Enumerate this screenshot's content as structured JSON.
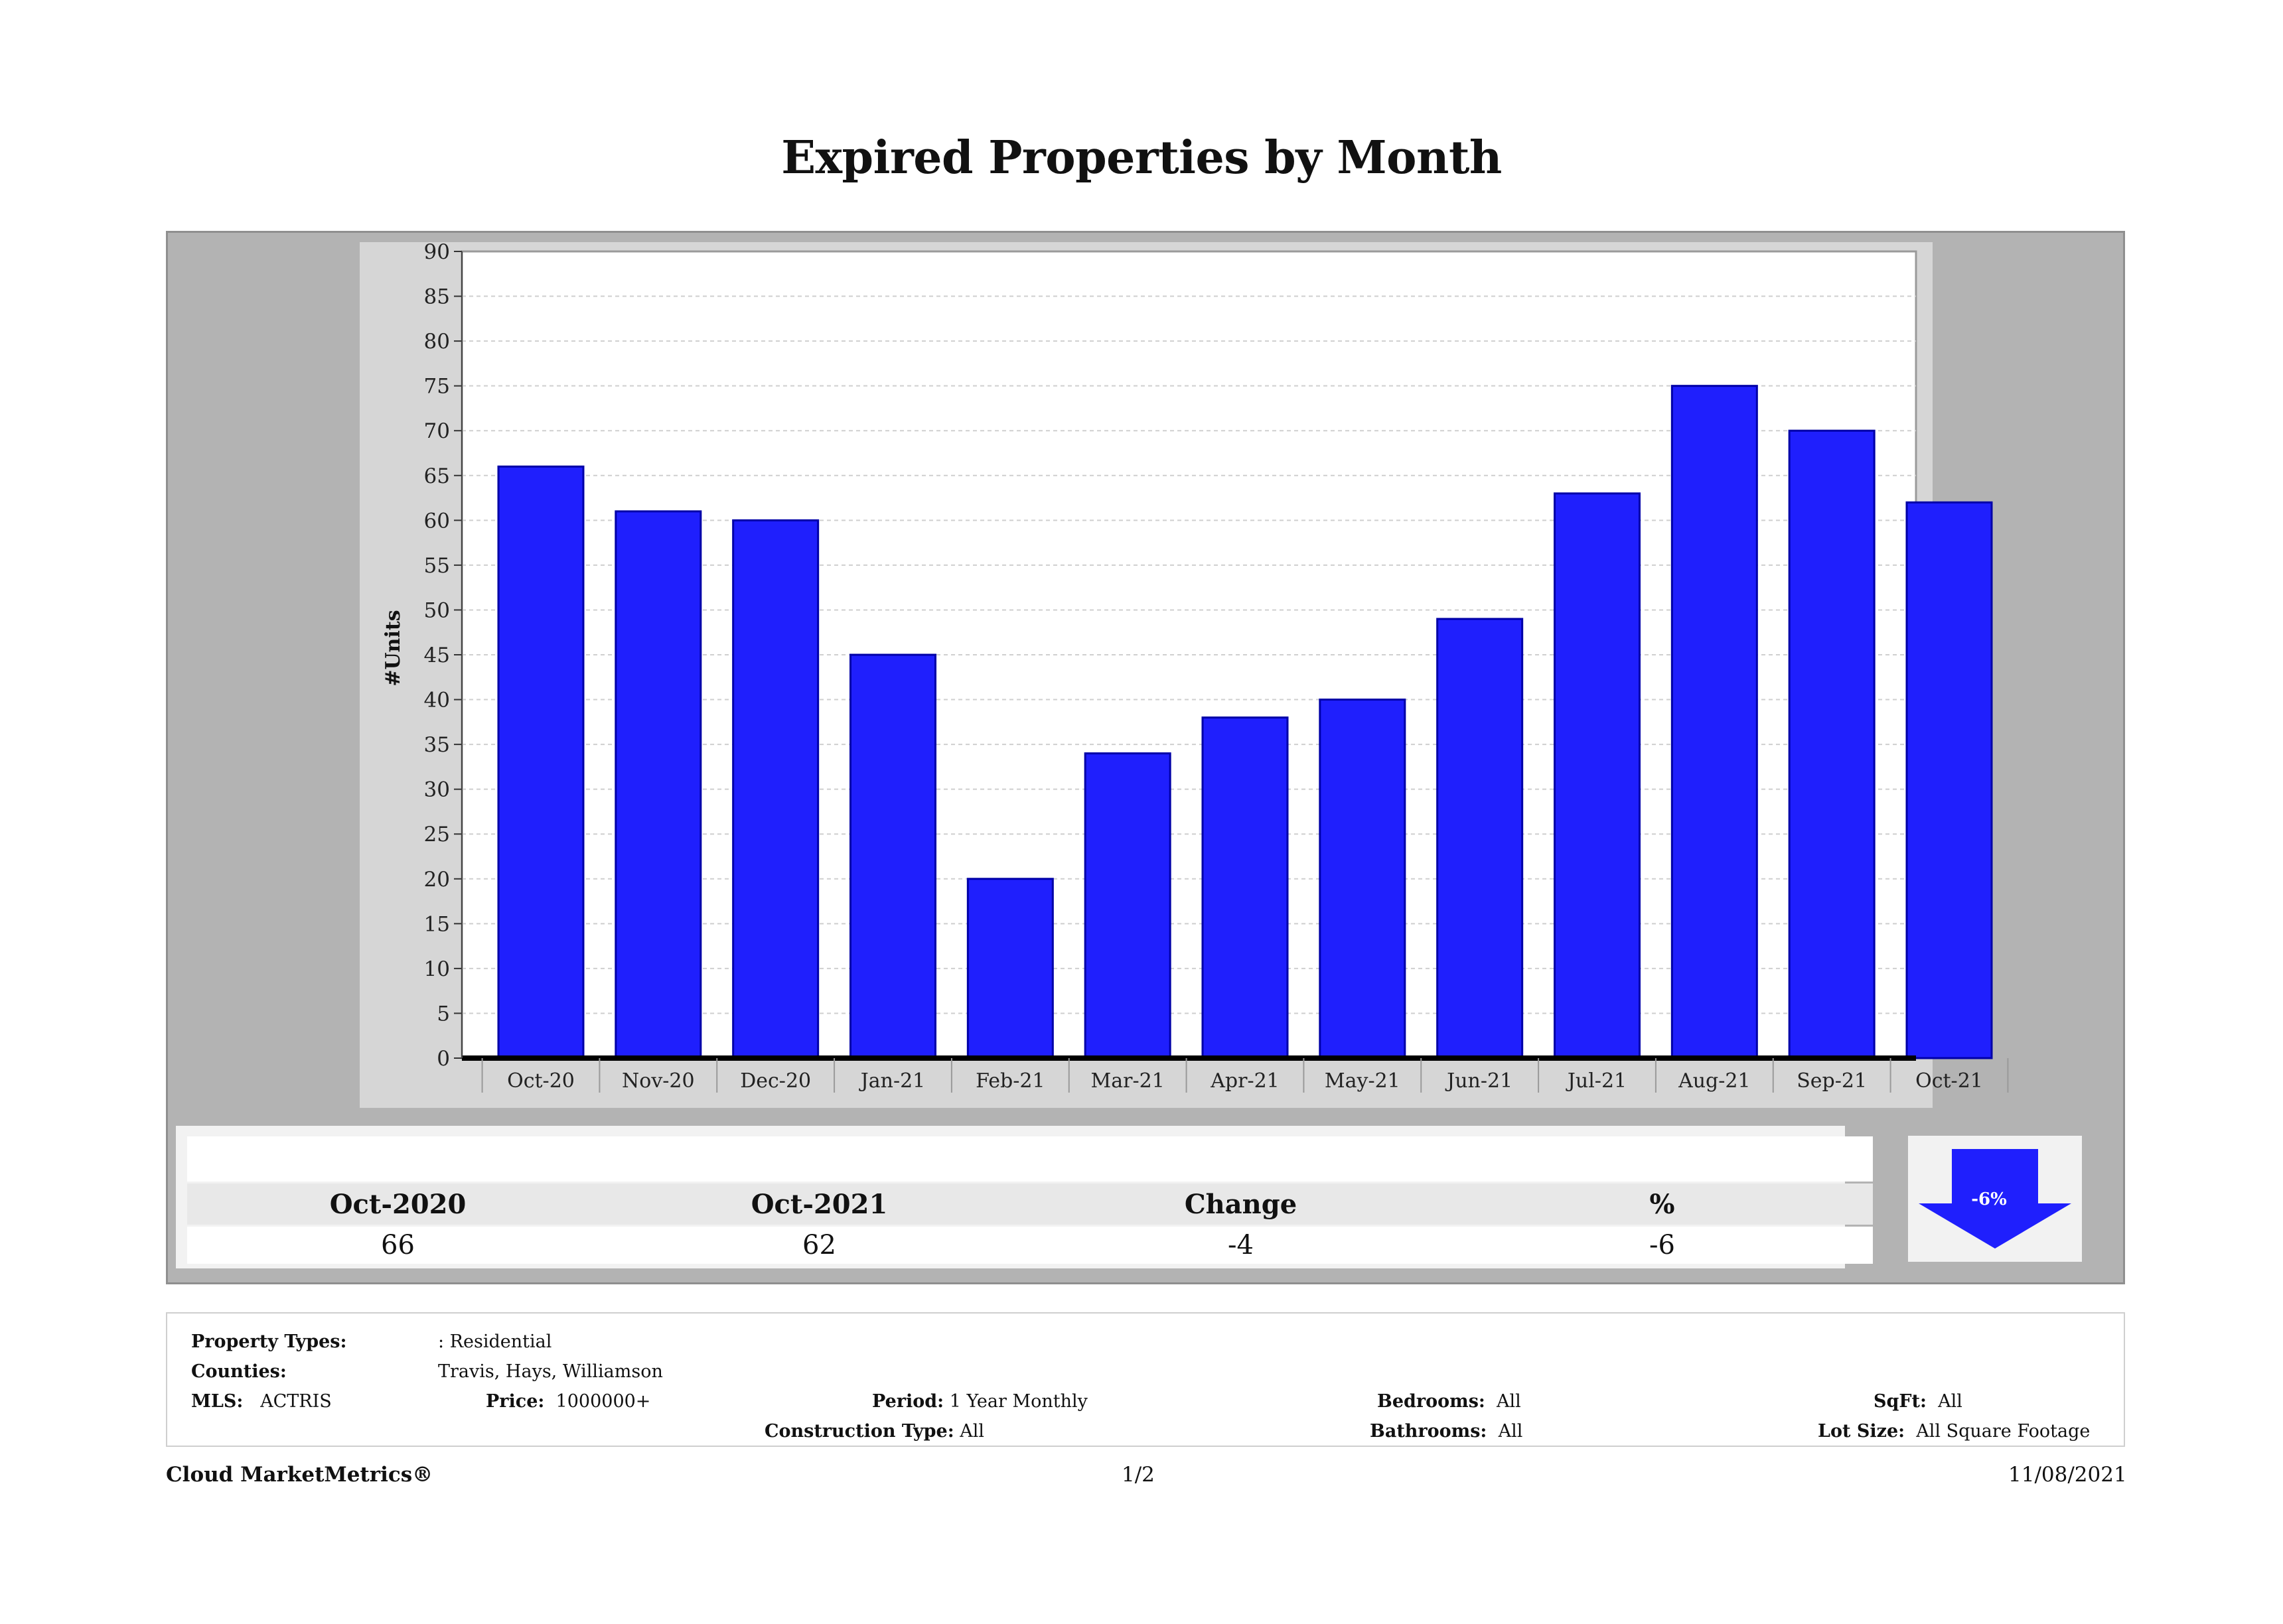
{
  "page": {
    "title": "Expired Properties by Month"
  },
  "chart_data": {
    "type": "bar",
    "title": "Expired Properties by Month",
    "ylabel": "#Units",
    "xlabel": "",
    "categories": [
      "Oct-20",
      "Nov-20",
      "Dec-20",
      "Jan-21",
      "Feb-21",
      "Mar-21",
      "Apr-21",
      "May-21",
      "Jun-21",
      "Jul-21",
      "Aug-21",
      "Sep-21",
      "Oct-21"
    ],
    "values": [
      66,
      61,
      60,
      45,
      20,
      34,
      38,
      40,
      49,
      63,
      75,
      70,
      62
    ],
    "ylim": [
      0,
      90
    ],
    "yticks": [
      0,
      5,
      10,
      15,
      20,
      25,
      30,
      35,
      40,
      45,
      50,
      55,
      60,
      65,
      70,
      75,
      80,
      85,
      90
    ],
    "grid": true,
    "bar_color": "#1f1ffd"
  },
  "stats": {
    "headers": [
      "Oct-2020",
      "Oct-2021",
      "Change",
      "%"
    ],
    "values": [
      "66",
      "62",
      "-4",
      "-6"
    ],
    "badge": "-6%",
    "badge_color": "#1f1ffd"
  },
  "filters": {
    "property_types_label": "Property Types:",
    "property_types_value": ": Residential",
    "counties_label": "Counties:",
    "counties_value": "Travis, Hays, Williamson",
    "mls_label": "MLS:",
    "mls_value": "ACTRIS",
    "price_label": "Price:",
    "price_value": "1000000+",
    "period_label": "Period:",
    "period_value": "1 Year Monthly",
    "construction_label": "Construction Type:",
    "construction_value": "All",
    "bedrooms_label": "Bedrooms:",
    "bedrooms_value": "All",
    "bathrooms_label": "Bathrooms:",
    "bathrooms_value": "All",
    "sqft_label": "SqFt:",
    "sqft_value": "All",
    "lotsize_label": "Lot Size:",
    "lotsize_value": "All Square Footage"
  },
  "footer": {
    "brand": "Cloud MarketMetrics®",
    "page": "1/2",
    "date": "11/08/2021"
  }
}
